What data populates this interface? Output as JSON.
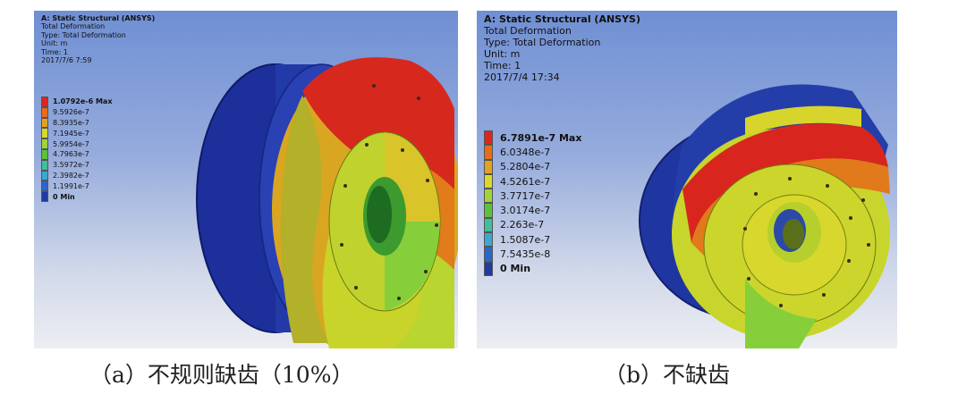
{
  "panels": [
    {
      "header": {
        "title": "A: Static Structural (ANSYS)",
        "line1": "Total Deformation",
        "line2": "Type: Total Deformation",
        "unit": "Unit: m",
        "time": "Time: 1",
        "date": "2017/7/6 7:59"
      },
      "legend": [
        {
          "label": "1.0792e-6 Max",
          "color": "#e0231e",
          "bold": true
        },
        {
          "label": "9.5926e-7",
          "color": "#e86c17",
          "bold": false
        },
        {
          "label": "8.3935e-7",
          "color": "#e3a21f",
          "bold": false
        },
        {
          "label": "7.1945e-7",
          "color": "#d7d92b",
          "bold": false
        },
        {
          "label": "5.9954e-7",
          "color": "#9fd43a",
          "bold": false
        },
        {
          "label": "4.7963e-7",
          "color": "#5cc23c",
          "bold": false
        },
        {
          "label": "3.5972e-7",
          "color": "#3fbf9a",
          "bold": false
        },
        {
          "label": "2.3982e-7",
          "color": "#3aa9cf",
          "bold": false
        },
        {
          "label": "1.1991e-7",
          "color": "#2b66c9",
          "bold": false
        },
        {
          "label": "0 Min",
          "color": "#1f3aa3",
          "bold": true
        }
      ]
    },
    {
      "header": {
        "title": "A: Static Structural (ANSYS)",
        "line1": "Total Deformation",
        "line2": "Type: Total Deformation",
        "unit": "Unit: m",
        "time": "Time: 1",
        "date": "2017/7/4 17:34"
      },
      "legend": [
        {
          "label": "6.7891e-7 Max",
          "color": "#e0231e",
          "bold": true
        },
        {
          "label": "6.0348e-7",
          "color": "#e86c17",
          "bold": false
        },
        {
          "label": "5.2804e-7",
          "color": "#e3a21f",
          "bold": false
        },
        {
          "label": "4.5261e-7",
          "color": "#d7d92b",
          "bold": false
        },
        {
          "label": "3.7717e-7",
          "color": "#9fd43a",
          "bold": false
        },
        {
          "label": "3.0174e-7",
          "color": "#5cc23c",
          "bold": false
        },
        {
          "label": "2.263e-7",
          "color": "#3fbf9a",
          "bold": false
        },
        {
          "label": "1.5087e-7",
          "color": "#3aa9cf",
          "bold": false
        },
        {
          "label": "7.5435e-8",
          "color": "#2b66c9",
          "bold": false
        },
        {
          "label": "0 Min",
          "color": "#1f3aa3",
          "bold": true
        }
      ]
    }
  ],
  "captions": {
    "a": "（a）不规则缺齿（10%）",
    "b": "（b）不缺齿"
  }
}
